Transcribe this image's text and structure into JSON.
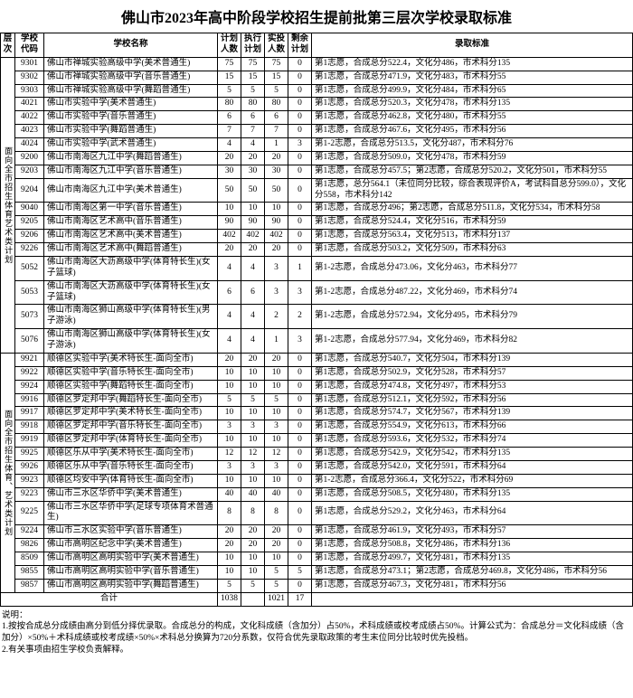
{
  "title": "佛山市2023年高中阶段学校招生提前批第三层次学校录取标准",
  "headers": {
    "tier": "层次",
    "code": "学校代码",
    "name": "学校名称",
    "plan": "计划人数",
    "exec": "执行计划",
    "actual": "实投人数",
    "remain": "剩余计划",
    "standard": "录取标准"
  },
  "groups": [
    {
      "tier_label": "面向全市招生体育艺术类计划",
      "rows": [
        {
          "code": "9301",
          "name": "佛山市禅城实验高级中学(美术普通生)",
          "plan": "75",
          "exec": "75",
          "actual": "75",
          "remain": "0",
          "std": "第1志愿，合成总分522.4，文化分486，市术科分135"
        },
        {
          "code": "9302",
          "name": "佛山市禅城实验高级中学(音乐普通生)",
          "plan": "15",
          "exec": "15",
          "actual": "15",
          "remain": "0",
          "std": "第1志愿，合成总分471.9，文化分483，市术科分55"
        },
        {
          "code": "9303",
          "name": "佛山市禅城实验高级中学(舞蹈普通生)",
          "plan": "5",
          "exec": "5",
          "actual": "5",
          "remain": "0",
          "std": "第1志愿，合成总分499.9，文化分484，市术科分65"
        },
        {
          "code": "4021",
          "name": "佛山市实验中学(美术普通生)",
          "plan": "80",
          "exec": "80",
          "actual": "80",
          "remain": "0",
          "std": "第1志愿，合成总分520.3，文化分478，市术科分135"
        },
        {
          "code": "4022",
          "name": "佛山市实验中学(音乐普通生)",
          "plan": "6",
          "exec": "6",
          "actual": "6",
          "remain": "0",
          "std": "第1志愿，合成总分462.8，文化分480，市术科分55"
        },
        {
          "code": "4023",
          "name": "佛山市实验中学(舞蹈普通生)",
          "plan": "7",
          "exec": "7",
          "actual": "7",
          "remain": "0",
          "std": "第1志愿，合成总分467.6，文化分495，市术科分56"
        },
        {
          "code": "4024",
          "name": "佛山市实验中学(武术普通生)",
          "plan": "4",
          "exec": "4",
          "actual": "1",
          "remain": "3",
          "std": "第1-2志愿，合成总分513.5，文化分487，市术科分76"
        },
        {
          "code": "9200",
          "name": "佛山市南海区九江中学(舞蹈普通生)",
          "plan": "20",
          "exec": "20",
          "actual": "20",
          "remain": "0",
          "std": "第1志愿，合成总分509.0，文化分478，市术科分59"
        },
        {
          "code": "9203",
          "name": "佛山市南海区九江中学(音乐普通生)",
          "plan": "30",
          "exec": "30",
          "actual": "30",
          "remain": "0",
          "std": "第1志愿，合成总分457.5；第2志愿，合成总分520.2，文化分501，市术科分55"
        },
        {
          "code": "9204",
          "name": "佛山市南海区九江中学(美术普通生)",
          "plan": "50",
          "exec": "50",
          "actual": "50",
          "remain": "0",
          "std": "第1志愿，总分564.1（未位同分比较，综合表现评价A，考试科目总分599.0），文化分558，市术科分142"
        },
        {
          "code": "9040",
          "name": "佛山市南海区第一中学(音乐普通生)",
          "plan": "10",
          "exec": "10",
          "actual": "10",
          "remain": "0",
          "std": "第1志愿，合成总分496；第2志愿，合成总分511.8，文化分534，市术科分58"
        },
        {
          "code": "9205",
          "name": "佛山市南海区艺术高中(音乐普通生)",
          "plan": "90",
          "exec": "90",
          "actual": "90",
          "remain": "0",
          "std": "第1志愿，合成总分524.4，文化分516，市术科分59"
        },
        {
          "code": "9206",
          "name": "佛山市南海区艺术高中(美术普通生)",
          "plan": "402",
          "exec": "402",
          "actual": "402",
          "remain": "0",
          "std": "第1志愿，合成总分563.4，文化分513，市术科分137"
        },
        {
          "code": "9226",
          "name": "佛山市南海区艺术高中(舞蹈普通生)",
          "plan": "20",
          "exec": "20",
          "actual": "20",
          "remain": "0",
          "std": "第1志愿，合成总分503.2，文化分509，市术科分63"
        },
        {
          "code": "5052",
          "name": "佛山市南海区大沥高级中学(体育特长生)(女子篮球)",
          "plan": "4",
          "exec": "4",
          "actual": "3",
          "remain": "1",
          "std": "第1-2志愿，合成总分473.06，文化分463，市术科分77"
        },
        {
          "code": "5053",
          "name": "佛山市南海区大沥高级中学(体育特长生)(女子篮球)",
          "plan": "6",
          "exec": "6",
          "actual": "3",
          "remain": "3",
          "std": "第1-2志愿，合成总分487.22，文化分469，市术科分74"
        },
        {
          "code": "5073",
          "name": "佛山市南海区狮山高级中学(体育特长生)(男子游泳)",
          "plan": "4",
          "exec": "4",
          "actual": "2",
          "remain": "2",
          "std": "第1-2志愿，合成总分572.94，文化分495，市术科分79"
        },
        {
          "code": "5076",
          "name": "佛山市南海区狮山高级中学(体育特长生)(女子游泳)",
          "plan": "4",
          "exec": "4",
          "actual": "1",
          "remain": "3",
          "std": "第1-2志愿，合成总分577.94，文化分469，市术科分82"
        }
      ]
    },
    {
      "tier_label": "面向全市招生体育、艺术类计划",
      "rows": [
        {
          "code": "9921",
          "name": "顺德区实验中学(美术特长生-面向全市)",
          "plan": "20",
          "exec": "20",
          "actual": "20",
          "remain": "0",
          "std": "第1志愿，合成总分540.7，文化分504，市术科分139"
        },
        {
          "code": "9922",
          "name": "顺德区实验中学(音乐特长生-面向全市)",
          "plan": "10",
          "exec": "10",
          "actual": "10",
          "remain": "0",
          "std": "第1志愿，合成总分502.9，文化分528，市术科分57"
        },
        {
          "code": "9924",
          "name": "顺德区实验中学(舞蹈特长生-面向全市)",
          "plan": "10",
          "exec": "10",
          "actual": "10",
          "remain": "0",
          "std": "第1志愿，合成总分474.8，文化分497，市术科分53"
        },
        {
          "code": "9916",
          "name": "顺德区罗定邦中学(舞蹈特长生-面向全市)",
          "plan": "5",
          "exec": "5",
          "actual": "5",
          "remain": "0",
          "std": "第1志愿，合成总分512.1，文化分592，市术科分56"
        },
        {
          "code": "9917",
          "name": "顺德区罗定邦中学(美术特长生-面向全市)",
          "plan": "10",
          "exec": "10",
          "actual": "10",
          "remain": "0",
          "std": "第1志愿，合成总分574.7，文化分567，市术科分139"
        },
        {
          "code": "9918",
          "name": "顺德区罗定邦中学(音乐特长生-面向全市)",
          "plan": "3",
          "exec": "3",
          "actual": "3",
          "remain": "0",
          "std": "第1志愿，合成总分554.9，文化分613，市术科分66"
        },
        {
          "code": "9919",
          "name": "顺德区罗定邦中学(体育特长生-面向全市)",
          "plan": "10",
          "exec": "10",
          "actual": "10",
          "remain": "0",
          "std": "第1志愿，合成总分593.6，文化分532，市术科分74"
        },
        {
          "code": "9925",
          "name": "顺德区乐从中学(美术特长生-面向全市)",
          "plan": "12",
          "exec": "12",
          "actual": "12",
          "remain": "0",
          "std": "第1志愿，合成总分542.9，文化分542，市术科分135"
        },
        {
          "code": "9926",
          "name": "顺德区乐从中学(音乐特长生-面向全市)",
          "plan": "3",
          "exec": "3",
          "actual": "3",
          "remain": "0",
          "std": "第1志愿，合成总分542.0，文化分591，市术科分64"
        },
        {
          "code": "9923",
          "name": "顺德区均安中学(体育特长生-面向全市)",
          "plan": "10",
          "exec": "10",
          "actual": "10",
          "remain": "0",
          "std": "第1-2志愿，合成总分366.4，文化分522，市术科分69"
        },
        {
          "code": "9223",
          "name": "佛山市三水区华侨中学(美术普通生)",
          "plan": "40",
          "exec": "40",
          "actual": "40",
          "remain": "0",
          "std": "第1志愿，合成总分508.5，文化分480，市术科分135"
        },
        {
          "code": "9225",
          "name": "佛山市三水区华侨中学(足球专项体育术普通生)",
          "plan": "8",
          "exec": "8",
          "actual": "8",
          "remain": "0",
          "std": "第1志愿，合成总分529.2，文化分463，市术科分64"
        },
        {
          "code": "9224",
          "name": "佛山市三水区实验中学(音乐普通生)",
          "plan": "20",
          "exec": "20",
          "actual": "20",
          "remain": "0",
          "std": "第1志愿，合成总分461.9，文化分493，市术科分57"
        },
        {
          "code": "9826",
          "name": "佛山市高明区纪念中学(美术普通生)",
          "plan": "20",
          "exec": "20",
          "actual": "20",
          "remain": "0",
          "std": "第1志愿，合成总分508.8，文化分486，市术科分136"
        },
        {
          "code": "8509",
          "name": "佛山市高明区高明实验中学(美术普通生)",
          "plan": "10",
          "exec": "10",
          "actual": "10",
          "remain": "0",
          "std": "第1志愿，合成总分499.7，文化分481，市术科分135"
        },
        {
          "code": "9855",
          "name": "佛山市高明区高明实验中学(音乐普通生)",
          "plan": "10",
          "exec": "10",
          "actual": "5",
          "remain": "5",
          "std": "第1志愿，合成总分473.1；第2志愿，合成总分469.8，文化分486，市术科分56"
        },
        {
          "code": "9857",
          "name": "佛山市高明区高明实验中学(舞蹈普通生)",
          "plan": "5",
          "exec": "5",
          "actual": "5",
          "remain": "0",
          "std": "第1志愿，合成总分467.3，文化分481，市术科分56"
        }
      ]
    }
  ],
  "total": {
    "label": "合计",
    "plan": "1038",
    "exec": "",
    "actual": "1021",
    "remain": "17",
    "std": ""
  },
  "notes": {
    "label": "说明：",
    "n1": "1.按按合成总分成绩由高分到低分择优录取。合成总分的构成，文化科成绩（含加分）占50%，术科成绩或校考成绩占50%。计算公式为：合成总分＝文化科成绩（含加分）×50%＋术科成绩或校考成绩×50%×术科总分换算为720分系数，仅符合优先录取政策的考生末位同分比较时优先投档。",
    "n2": "2.有关事项由招生学校负责解释。"
  }
}
